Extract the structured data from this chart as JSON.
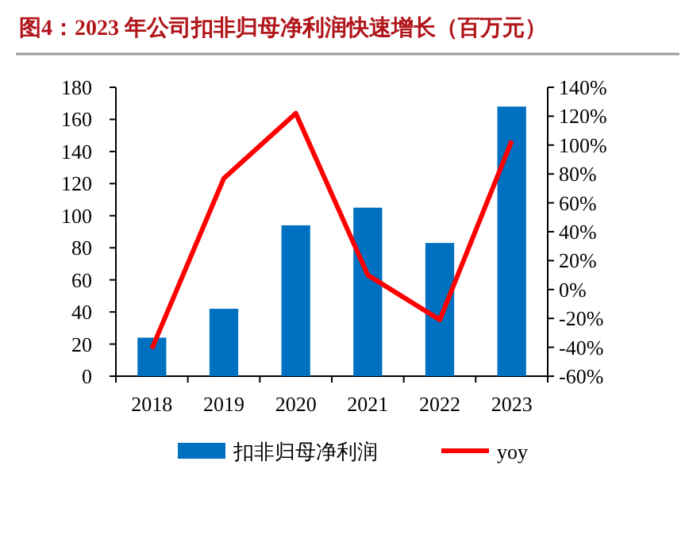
{
  "chart_data": {
    "type": "bar",
    "title": "图4：2023 年公司扣非归母净利润快速增长（百万元）",
    "categories": [
      "2018",
      "2019",
      "2020",
      "2021",
      "2022",
      "2023"
    ],
    "series": [
      {
        "name": "扣非归母净利润",
        "color": "#0070c0",
        "values": [
          24,
          42,
          94,
          105,
          83,
          168
        ]
      },
      {
        "name": "yoy",
        "type": "line",
        "axis": "y2",
        "color": "#ff0000",
        "values": [
          -41,
          77,
          122,
          10,
          -21,
          103
        ]
      }
    ],
    "ylim": [
      0,
      180
    ],
    "yticks": [
      0,
      20,
      40,
      60,
      80,
      100,
      120,
      140,
      160,
      180
    ],
    "y2lim": [
      -60,
      140
    ],
    "y2ticks": [
      {
        "value": -60,
        "label": "-60%"
      },
      {
        "value": -40,
        "label": "-40%"
      },
      {
        "value": -20,
        "label": "-20%"
      },
      {
        "value": 0,
        "label": "0%"
      },
      {
        "value": 20,
        "label": "20%"
      },
      {
        "value": 40,
        "label": "40%"
      },
      {
        "value": 60,
        "label": "60%"
      },
      {
        "value": 80,
        "label": "80%"
      },
      {
        "value": 100,
        "label": "100%"
      },
      {
        "value": 120,
        "label": "120%"
      },
      {
        "value": 140,
        "label": "140%"
      }
    ],
    "legend": "bottom"
  }
}
